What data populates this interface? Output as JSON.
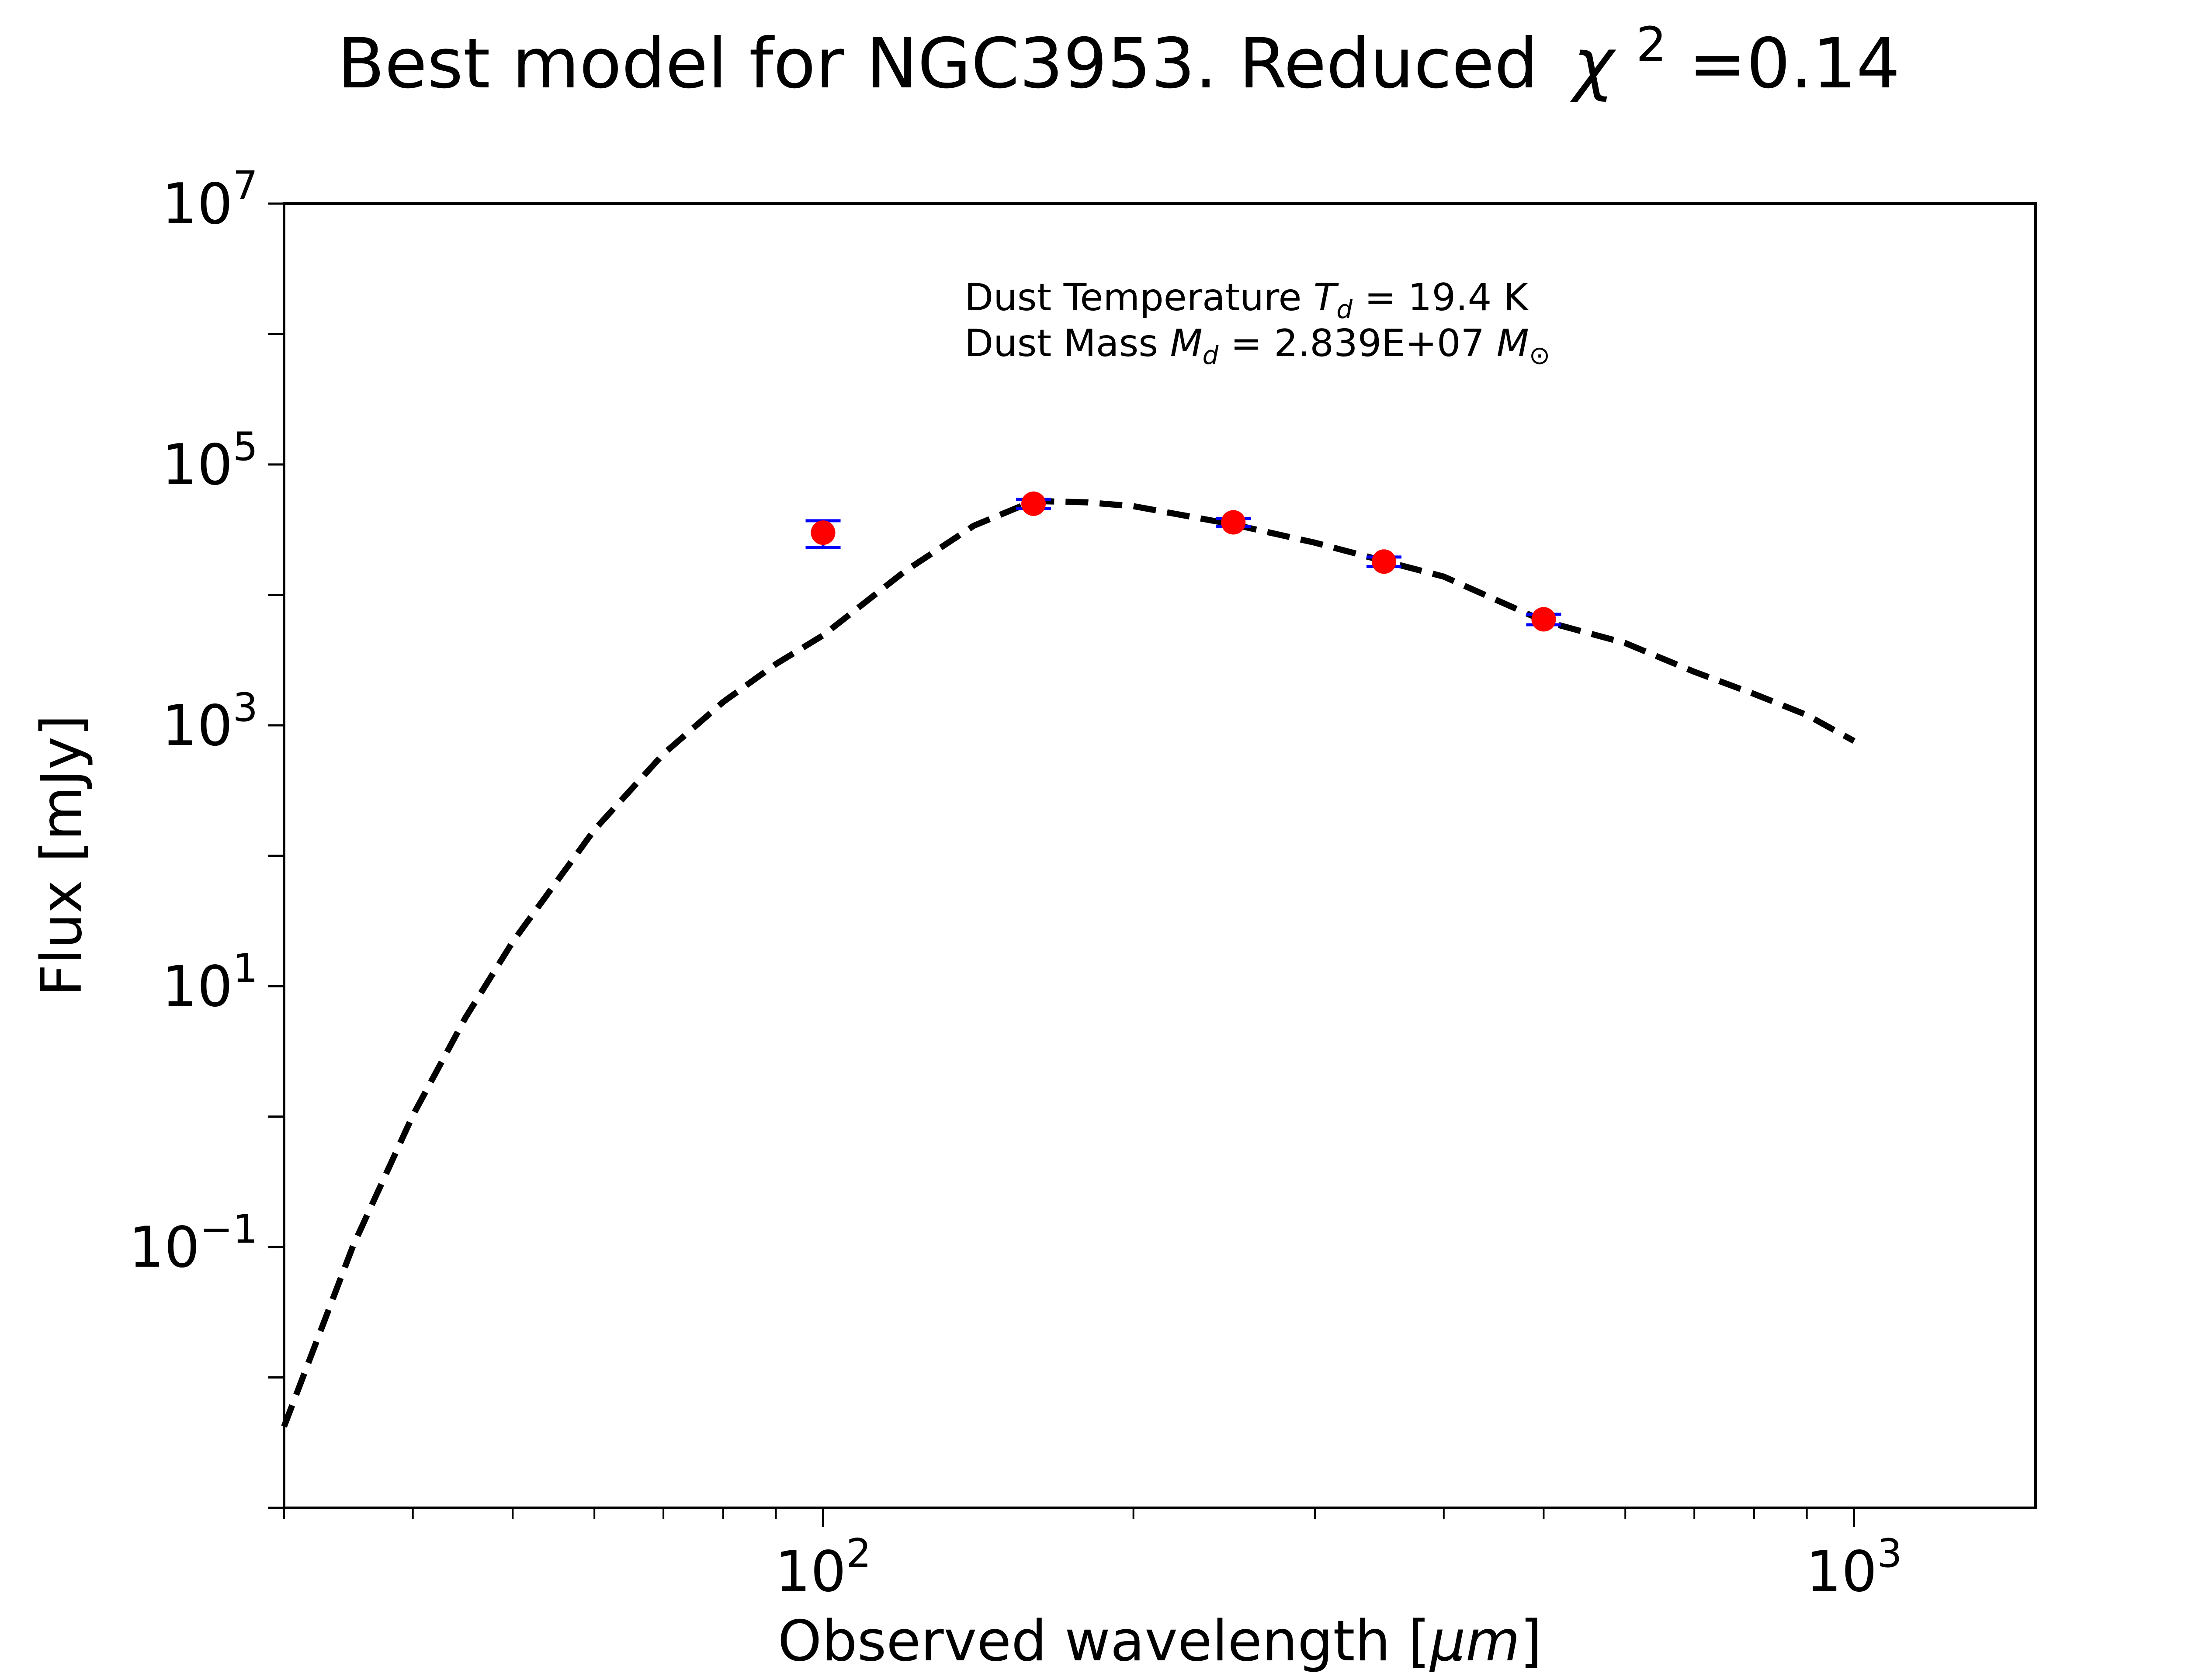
{
  "chart_data": {
    "type": "scatter",
    "title": "Best model for NGC3953. Reduced",
    "title_chi_symbol": "χ",
    "title_chi_exponent": "2",
    "title_chi_value": "=0.14",
    "xlabel_prefix": "Observed wavelength [",
    "xlabel_unit": "μm",
    "xlabel_suffix": "]",
    "ylabel": "Flux [mJy]",
    "x_scale": "log",
    "y_scale": "log",
    "xlim": [
      30,
      1500
    ],
    "ylim": [
      0.001,
      10000000
    ],
    "grid": false,
    "x_ticks": [
      {
        "value": 100,
        "base": "10",
        "exp": "2"
      },
      {
        "value": 1000,
        "base": "10",
        "exp": "3"
      }
    ],
    "y_ticks": [
      {
        "value": 0.1,
        "base": "10",
        "exp": "−1"
      },
      {
        "value": 10,
        "base": "10",
        "exp": "1"
      },
      {
        "value": 1000,
        "base": "10",
        "exp": "3"
      },
      {
        "value": 100000,
        "base": "10",
        "exp": "5"
      },
      {
        "value": 10000000,
        "base": "10",
        "exp": "7"
      }
    ],
    "annotation": {
      "line1_prefix": "Dust Temperature ",
      "line1_symbol": "T",
      "line1_sub": "d",
      "line1_value": " = 19.4 K",
      "line2_prefix": "Dust Mass ",
      "line2_symbol": "M",
      "line2_sub": "d",
      "line2_value": " = 2.839E+07 ",
      "line2_unit_symbol": "M",
      "line2_unit_sub": "⊙"
    },
    "series": [
      {
        "type": "line",
        "style": "dashed",
        "color": "#000000",
        "x": [
          30,
          35,
          40,
          45,
          50,
          60,
          70,
          80,
          90,
          100,
          120,
          140,
          160,
          180,
          200,
          250,
          300,
          350,
          400,
          500,
          600,
          700,
          800,
          900,
          1000
        ],
        "y": [
          0.0042,
          0.102,
          1.02,
          5.75,
          21.9,
          158,
          603,
          1510,
          2951,
          4898,
          15140,
          33880,
          52480,
          51290,
          47860,
          34670,
          25120,
          18200,
          13800,
          6310,
          4270,
          2570,
          1740,
          1200,
          758
        ]
      },
      {
        "type": "errorbar",
        "marker_color": "#ff0000",
        "errorbar_color": "#0000ff",
        "x": [
          100,
          160,
          250,
          350,
          500
        ],
        "y": [
          30000,
          50000,
          36000,
          18000,
          6500
        ],
        "yerr_low": [
          7000,
          4000,
          2500,
          1500,
          600
        ],
        "yerr_high": [
          7000,
          4000,
          2500,
          1500,
          600
        ]
      }
    ]
  }
}
